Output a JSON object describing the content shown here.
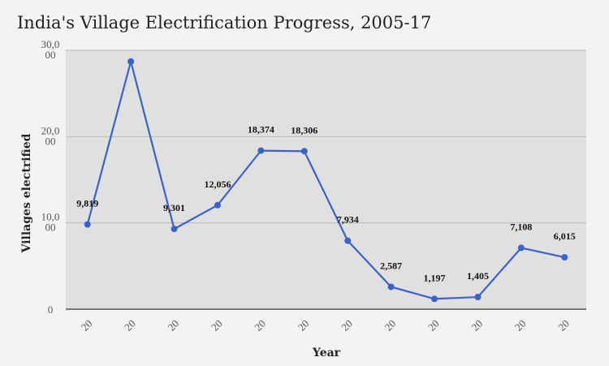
{
  "chart_data": {
    "type": "line",
    "title": "India's Village Electrification Progress, 2005-17",
    "xlabel": "Year",
    "ylabel": "Villages electrified",
    "ylim": [
      0,
      30000
    ],
    "y_ticks": [
      {
        "value": 0,
        "lines": [
          "0"
        ]
      },
      {
        "value": 10000,
        "lines": [
          "10,0",
          "00"
        ]
      },
      {
        "value": 20000,
        "lines": [
          "20,0",
          "00"
        ]
      },
      {
        "value": 30000,
        "lines": [
          "30,0",
          "00"
        ]
      }
    ],
    "categories": [
      "20",
      "20",
      "20",
      "20",
      "20",
      "20",
      "20",
      "20",
      "20",
      "20",
      "20",
      "20"
    ],
    "values": [
      9819,
      28706,
      9301,
      12056,
      18374,
      18306,
      7934,
      2587,
      1197,
      1405,
      7108,
      6015
    ],
    "data_labels": [
      "9,819",
      "",
      "9,301",
      "12,056",
      "18,374",
      "18,306",
      "7,934",
      "2,587",
      "1,197",
      "1,405",
      "7,108",
      "6,015"
    ],
    "line_color": "#3a62c9",
    "grid": true,
    "legend": "none"
  }
}
